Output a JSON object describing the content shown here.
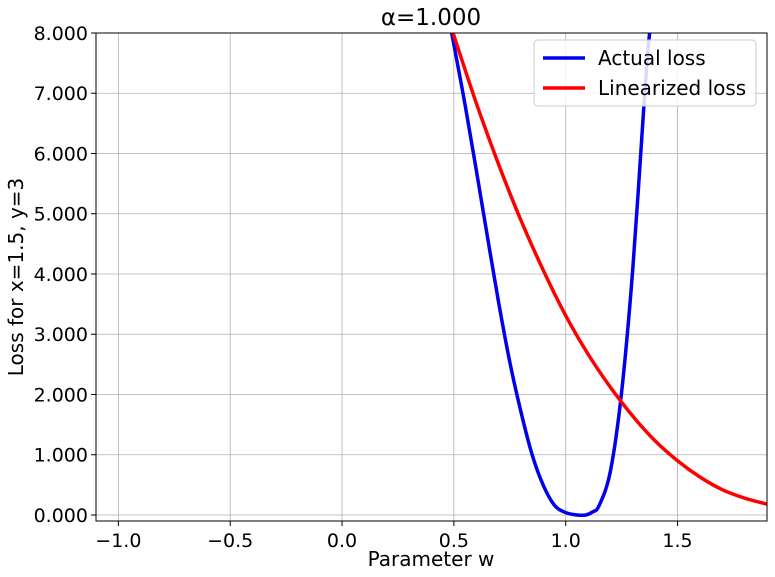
{
  "chart_data": {
    "type": "line",
    "title": "α=1.000",
    "xlabel": "Parameter w",
    "ylabel": "Loss for x=1.5, y=3",
    "xlim": [
      -1.1,
      1.9
    ],
    "ylim": [
      -0.1,
      8.0
    ],
    "xticks": [
      -1.0,
      -0.5,
      0.0,
      0.5,
      1.0,
      1.5
    ],
    "xtick_labels": [
      "−1.0",
      "−0.5",
      "0.0",
      "0.5",
      "1.0",
      "1.5"
    ],
    "yticks": [
      0,
      1,
      2,
      3,
      4,
      5,
      6,
      7,
      8
    ],
    "ytick_labels": [
      "0.000",
      "1.000",
      "2.000",
      "3.000",
      "4.000",
      "5.000",
      "6.000",
      "7.000",
      "8.000"
    ],
    "grid": true,
    "legend_position": "top-right",
    "series": [
      {
        "name": "Actual loss",
        "color": "#0000ee",
        "x": [
          0.48,
          0.5,
          0.55,
          0.6,
          0.65,
          0.7,
          0.75,
          0.8,
          0.85,
          0.9,
          0.95,
          1.0,
          1.05,
          1.09,
          1.12,
          1.15,
          1.2,
          1.25,
          1.3,
          1.35,
          1.37,
          1.39
        ],
        "y": [
          8.2,
          7.81,
          6.81,
          5.73,
          4.62,
          3.53,
          2.54,
          1.71,
          1.0,
          0.49,
          0.16,
          0.04,
          0.0,
          0.0,
          0.05,
          0.16,
          0.73,
          2.04,
          4.09,
          6.81,
          7.8,
          8.5
        ]
      },
      {
        "name": "Linearized loss",
        "color": "#ff0000",
        "x": [
          0.48,
          0.5,
          0.6,
          0.7,
          0.8,
          0.9,
          1.0,
          1.1,
          1.2,
          1.3,
          1.4,
          1.5,
          1.6,
          1.7,
          1.8,
          1.9
        ],
        "y": [
          8.2,
          7.96,
          6.84,
          5.82,
          4.89,
          4.06,
          3.31,
          2.67,
          2.12,
          1.64,
          1.23,
          0.9,
          0.63,
          0.42,
          0.28,
          0.18
        ]
      }
    ]
  }
}
